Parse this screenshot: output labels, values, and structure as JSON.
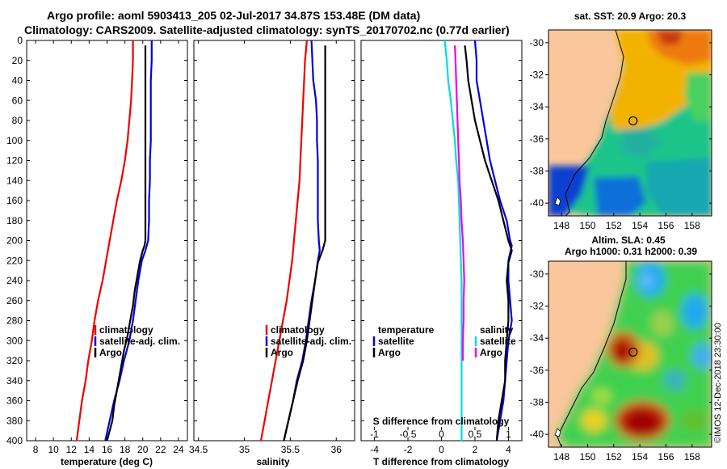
{
  "header": {
    "title_line1": "Argo profile: aoml 5903413_205 02-Jul-2017 34.87S 153.48E (DM data)",
    "title_line2": "Climatology: CARS2009. Satellite-adjusted climatology: synTS_20170702.nc (0.77d earlier)"
  },
  "chart_data": [
    {
      "type": "line",
      "name": "temperature",
      "xlabel": "temperature (deg C)",
      "xlim": [
        7,
        25
      ],
      "xticks": [
        8,
        10,
        12,
        14,
        16,
        18,
        20,
        22,
        24
      ],
      "ylim": [
        0,
        400
      ],
      "yticks": [
        0,
        20,
        40,
        60,
        80,
        100,
        120,
        140,
        160,
        180,
        200,
        220,
        240,
        260,
        280,
        300,
        320,
        340,
        360,
        380,
        400
      ],
      "legend": [
        "climatology",
        "satellite-adj. clim.",
        "Argo"
      ],
      "series": [
        {
          "name": "climatology",
          "color": "#ee0000",
          "points": [
            [
              18.9,
              0
            ],
            [
              18.9,
              20
            ],
            [
              18.8,
              40
            ],
            [
              18.7,
              60
            ],
            [
              18.5,
              80
            ],
            [
              18.3,
              100
            ],
            [
              18.0,
              120
            ],
            [
              17.6,
              140
            ],
            [
              17.1,
              160
            ],
            [
              16.7,
              180
            ],
            [
              16.3,
              200
            ],
            [
              15.9,
              220
            ],
            [
              15.5,
              240
            ],
            [
              15.0,
              260
            ],
            [
              14.6,
              280
            ],
            [
              14.3,
              300
            ],
            [
              13.9,
              320
            ],
            [
              13.6,
              340
            ],
            [
              13.2,
              360
            ],
            [
              12.9,
              380
            ],
            [
              12.6,
              400
            ]
          ]
        },
        {
          "name": "satellite-adj. clim.",
          "color": "#0000dd",
          "points": [
            [
              21.0,
              0
            ],
            [
              21.0,
              20
            ],
            [
              20.9,
              40
            ],
            [
              20.9,
              60
            ],
            [
              20.9,
              80
            ],
            [
              20.9,
              100
            ],
            [
              20.8,
              120
            ],
            [
              20.8,
              140
            ],
            [
              20.7,
              160
            ],
            [
              20.7,
              180
            ],
            [
              20.6,
              200
            ],
            [
              20.3,
              210
            ],
            [
              19.9,
              220
            ],
            [
              19.5,
              240
            ],
            [
              19.2,
              260
            ],
            [
              18.9,
              280
            ],
            [
              18.5,
              300
            ],
            [
              17.9,
              320
            ],
            [
              17.4,
              340
            ],
            [
              16.8,
              360
            ],
            [
              16.3,
              380
            ],
            [
              15.8,
              400
            ]
          ]
        },
        {
          "name": "Argo",
          "color": "#000000",
          "points": [
            [
              20.3,
              5
            ],
            [
              20.3,
              50
            ],
            [
              20.3,
              100
            ],
            [
              20.3,
              150
            ],
            [
              20.3,
              200
            ],
            [
              20.2,
              205
            ],
            [
              20.0,
              210
            ],
            [
              19.7,
              220
            ],
            [
              19.4,
              235
            ],
            [
              19.1,
              250
            ],
            [
              18.9,
              265
            ],
            [
              18.6,
              280
            ],
            [
              18.3,
              295
            ],
            [
              17.9,
              310
            ],
            [
              17.5,
              330
            ],
            [
              17.1,
              350
            ],
            [
              16.8,
              365
            ],
            [
              16.6,
              380
            ],
            [
              16.3,
              390
            ],
            [
              16.0,
              400
            ]
          ]
        }
      ]
    },
    {
      "type": "line",
      "name": "salinity",
      "xlabel": "salinity",
      "xlim": [
        34.45,
        36.2
      ],
      "xticks": [
        34.5,
        35,
        35.5,
        36
      ],
      "ylim": [
        0,
        400
      ],
      "legend": [
        "climatology",
        "satellite-adj. clim.",
        "Argo"
      ],
      "series": [
        {
          "name": "climatology",
          "color": "#ee0000",
          "points": [
            [
              35.68,
              0
            ],
            [
              35.66,
              20
            ],
            [
              35.65,
              40
            ],
            [
              35.64,
              60
            ],
            [
              35.63,
              80
            ],
            [
              35.62,
              100
            ],
            [
              35.61,
              120
            ],
            [
              35.6,
              140
            ],
            [
              35.58,
              160
            ],
            [
              35.56,
              180
            ],
            [
              35.54,
              200
            ],
            [
              35.52,
              220
            ],
            [
              35.49,
              240
            ],
            [
              35.46,
              260
            ],
            [
              35.42,
              280
            ],
            [
              35.38,
              300
            ],
            [
              35.34,
              320
            ],
            [
              35.3,
              340
            ],
            [
              35.26,
              360
            ],
            [
              35.22,
              380
            ],
            [
              35.18,
              400
            ]
          ]
        },
        {
          "name": "satellite-adj. clim.",
          "color": "#0000dd",
          "points": [
            [
              35.73,
              0
            ],
            [
              35.74,
              20
            ],
            [
              35.75,
              40
            ],
            [
              35.78,
              60
            ],
            [
              35.79,
              80
            ],
            [
              35.79,
              100
            ],
            [
              35.8,
              120
            ],
            [
              35.8,
              140
            ],
            [
              35.8,
              160
            ],
            [
              35.8,
              180
            ],
            [
              35.81,
              200
            ],
            [
              35.82,
              210
            ],
            [
              35.8,
              220
            ],
            [
              35.77,
              240
            ],
            [
              35.73,
              260
            ],
            [
              35.7,
              280
            ],
            [
              35.67,
              300
            ],
            [
              35.63,
              320
            ],
            [
              35.57,
              340
            ],
            [
              35.53,
              360
            ],
            [
              35.48,
              380
            ],
            [
              35.43,
              400
            ]
          ]
        },
        {
          "name": "Argo",
          "color": "#000000",
          "points": [
            [
              35.88,
              5
            ],
            [
              35.88,
              50
            ],
            [
              35.88,
              100
            ],
            [
              35.88,
              150
            ],
            [
              35.88,
              200
            ],
            [
              35.85,
              210
            ],
            [
              35.8,
              222
            ],
            [
              35.77,
              240
            ],
            [
              35.74,
              260
            ],
            [
              35.71,
              280
            ],
            [
              35.68,
              300
            ],
            [
              35.64,
              320
            ],
            [
              35.58,
              340
            ],
            [
              35.53,
              360
            ],
            [
              35.48,
              380
            ],
            [
              35.43,
              400
            ]
          ]
        }
      ]
    },
    {
      "type": "line",
      "name": "difference from climatology",
      "xlabel": "T difference from climatology",
      "xlim": [
        -4.8,
        4.8
      ],
      "xticks": [
        -4,
        -2,
        0,
        2,
        4
      ],
      "top_xlabel": "S difference from climatology",
      "top_xlim": [
        -1.2,
        1.2
      ],
      "top_xticks": [
        -1,
        -0.5,
        0,
        0.5,
        1
      ],
      "top_xticklabels": [
        "-1",
        "-0.5",
        "0",
        "0.5",
        "1"
      ],
      "ylim": [
        0,
        400
      ],
      "legend_left_title": "temperature",
      "legend_left": [
        "satellite",
        "Argo"
      ],
      "legend_right_title": "salinity",
      "legend_right": [
        "satellite",
        "Argo"
      ],
      "series": [
        {
          "name": "T satellite",
          "color": "#0000dd",
          "axis": "T",
          "points": [
            [
              2.0,
              0
            ],
            [
              2.1,
              20
            ],
            [
              2.1,
              40
            ],
            [
              2.3,
              60
            ],
            [
              2.5,
              80
            ],
            [
              2.7,
              100
            ],
            [
              2.9,
              120
            ],
            [
              3.2,
              140
            ],
            [
              3.5,
              160
            ],
            [
              3.9,
              180
            ],
            [
              4.1,
              200
            ],
            [
              4.2,
              205
            ],
            [
              4.0,
              220
            ],
            [
              4.0,
              240
            ],
            [
              4.1,
              260
            ],
            [
              4.2,
              280
            ],
            [
              4.0,
              300
            ],
            [
              3.9,
              320
            ],
            [
              3.8,
              340
            ],
            [
              3.7,
              360
            ],
            [
              3.5,
              380
            ],
            [
              3.3,
              400
            ]
          ]
        },
        {
          "name": "T Argo",
          "color": "#000000",
          "axis": "T",
          "points": [
            [
              1.4,
              5
            ],
            [
              1.5,
              20
            ],
            [
              1.6,
              40
            ],
            [
              1.8,
              60
            ],
            [
              2.0,
              80
            ],
            [
              2.3,
              100
            ],
            [
              2.6,
              120
            ],
            [
              3.0,
              140
            ],
            [
              3.4,
              160
            ],
            [
              3.7,
              180
            ],
            [
              4.0,
              200
            ],
            [
              4.2,
              210
            ],
            [
              4.0,
              222
            ],
            [
              3.9,
              240
            ],
            [
              4.0,
              260
            ],
            [
              4.0,
              280
            ],
            [
              3.9,
              300
            ],
            [
              3.8,
              320
            ],
            [
              3.8,
              340
            ],
            [
              3.6,
              360
            ],
            [
              3.4,
              380
            ],
            [
              3.3,
              400
            ]
          ]
        },
        {
          "name": "S satellite",
          "color": "#00dddd",
          "axis": "S",
          "points": [
            [
              0.05,
              0
            ],
            [
              0.08,
              20
            ],
            [
              0.1,
              40
            ],
            [
              0.14,
              60
            ],
            [
              0.17,
              80
            ],
            [
              0.2,
              100
            ],
            [
              0.22,
              120
            ],
            [
              0.25,
              140
            ],
            [
              0.26,
              160
            ],
            [
              0.27,
              180
            ],
            [
              0.28,
              200
            ],
            [
              0.29,
              220
            ],
            [
              0.3,
              240
            ],
            [
              0.3,
              260
            ],
            [
              0.3,
              280
            ],
            [
              0.3,
              300
            ],
            [
              0.3,
              320
            ],
            [
              0.3,
              340
            ],
            [
              0.3,
              360
            ],
            [
              0.3,
              380
            ],
            [
              0.3,
              400
            ]
          ]
        },
        {
          "name": "S Argo",
          "color": "#ee00ee",
          "axis": "S",
          "points": [
            [
              0.2,
              5
            ],
            [
              0.21,
              20
            ],
            [
              0.22,
              40
            ],
            [
              0.23,
              60
            ],
            [
              0.24,
              80
            ],
            [
              0.25,
              100
            ],
            [
              0.26,
              120
            ],
            [
              0.27,
              140
            ],
            [
              0.29,
              160
            ],
            [
              0.3,
              180
            ],
            [
              0.32,
              200
            ],
            [
              0.33,
              220
            ],
            [
              0.34,
              240
            ],
            [
              0.33,
              260
            ],
            [
              0.33,
              280
            ],
            [
              0.32,
              300
            ],
            [
              0.32,
              320
            ]
          ]
        }
      ]
    }
  ],
  "maps": [
    {
      "title": "sat. SST: 20.9 Argo: 20.3",
      "yticks": [
        -30,
        -32,
        -34,
        -36,
        -38,
        -40
      ],
      "yticklabels": [
        "-30",
        "-32",
        "-34",
        "-36",
        "-38",
        "-40"
      ],
      "xticks": [
        148,
        150,
        152,
        154,
        156,
        158
      ],
      "xticklabels": [
        "148",
        "150",
        "152",
        "154",
        "156",
        "158"
      ],
      "profile_lon": 153.48,
      "profile_lat": -34.87
    },
    {
      "title_line1": "Altim. SLA: 0.45",
      "title_line2": "Argo h1000: 0.31 h2000: 0.39",
      "yticks": [
        -30,
        -32,
        -34,
        -36,
        -38,
        -40
      ],
      "yticklabels": [
        "-30",
        "-32",
        "-34",
        "-36",
        "-38",
        "-40"
      ],
      "xticks": [
        148,
        150,
        152,
        154,
        156,
        158
      ],
      "xticklabels": [
        "148",
        "150",
        "152",
        "154",
        "156",
        "158"
      ],
      "profile_lon": 153.48,
      "profile_lat": -34.87
    }
  ],
  "credit": "©IMOS 12-Dec-2018 23:30:00",
  "colors": {
    "land": "#f9c79b",
    "coast": "#000000",
    "sst_warm": "#f4a800",
    "sst_mid": "#16c88a",
    "sst_cool": "#0a3ad0",
    "sla_high": "#b00000",
    "sla_mid": "#40d040",
    "sla_low": "#40a0f0"
  }
}
